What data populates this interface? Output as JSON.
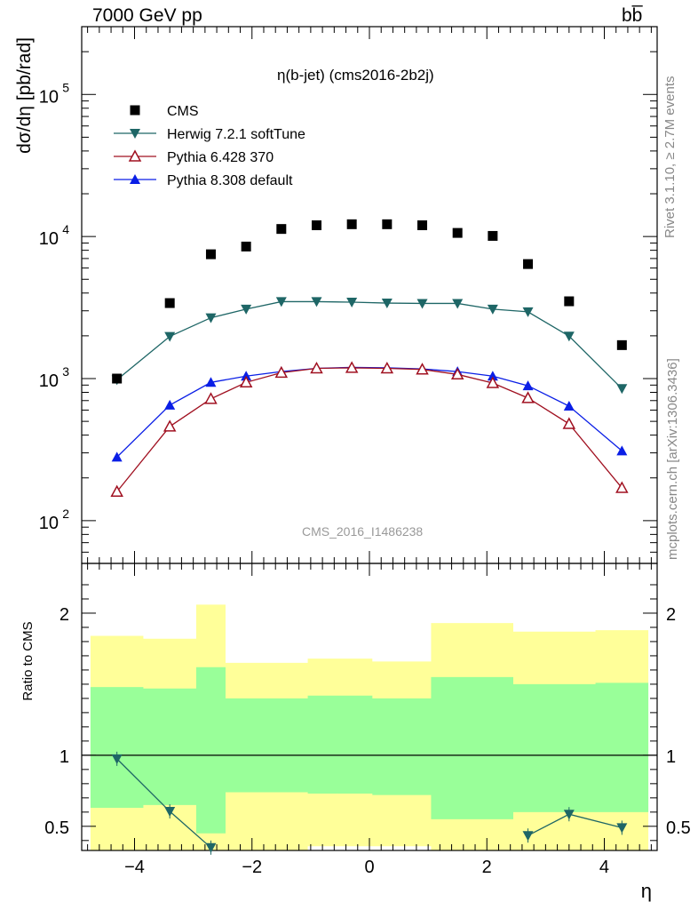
{
  "header": {
    "energy_label": "7000 GeV pp",
    "process_label": "bb̅"
  },
  "side_labels": {
    "rivet": "Rivet 3.1.10, ≥ 2.7M events",
    "mcplots": "mcplots.cern.ch [arXiv:1306.3436]"
  },
  "watermark": "CMS_2016_I1486238",
  "chart_data": {
    "type": "scatter",
    "title": "η(b-jet) (cms2016-2b2j)",
    "xlabel": "η",
    "ylabel": "dσ/dη [pb/rad]",
    "ratio_ylabel": "Ratio to CMS",
    "yscale": "log",
    "xlim": [
      -4.9,
      4.9
    ],
    "ylim": [
      50,
      300000
    ],
    "ratio_ylim": [
      0.33,
      2.35
    ],
    "x_ticks": [
      "−4",
      "−2",
      "0",
      "2",
      "4"
    ],
    "y_ticks": [
      "10^2",
      "10^3",
      "10^4",
      "10^5"
    ],
    "ratio_ticks": [
      "0.5",
      "1",
      "2"
    ],
    "legend_position": "top-left",
    "x": [
      -4.3,
      -3.4,
      -2.7,
      -2.1,
      -1.5,
      -0.9,
      -0.3,
      0.3,
      0.9,
      1.5,
      2.1,
      2.7,
      3.4,
      4.3
    ],
    "bin_edges": [
      -4.75,
      -3.85,
      -2.95,
      -2.45,
      -1.75,
      -1.05,
      -0.55,
      0.05,
      0.55,
      1.05,
      1.75,
      2.45,
      2.95,
      3.85,
      4.75
    ],
    "series": [
      {
        "name": "CMS",
        "marker": "square",
        "color": "#000000",
        "values": [
          1000,
          3400,
          7500,
          8500,
          11300,
          12000,
          12200,
          12200,
          12000,
          10600,
          10100,
          6400,
          3500,
          1720
        ]
      },
      {
        "name": "Herwig 7.2.1 softTune",
        "marker": "triangle-down",
        "color": "#1e6666",
        "values": [
          980,
          1980,
          2680,
          3080,
          3480,
          3480,
          3450,
          3400,
          3380,
          3380,
          3080,
          2950,
          1990,
          850
        ]
      },
      {
        "name": "Pythia 6.428 370",
        "marker": "triangle-up-open",
        "color": "#a01020",
        "values": [
          160,
          460,
          720,
          940,
          1100,
          1180,
          1190,
          1180,
          1160,
          1070,
          930,
          730,
          480,
          170
        ]
      },
      {
        "name": "Pythia 8.308 default",
        "marker": "triangle-up",
        "color": "#0a1ee6",
        "values": [
          280,
          650,
          940,
          1040,
          1120,
          1180,
          1200,
          1190,
          1170,
          1120,
          1040,
          890,
          640,
          310
        ]
      }
    ],
    "ratio": {
      "reference": 1,
      "band_outer": {
        "color": "#ffff99",
        "upper": [
          1.84,
          1.82,
          2.06,
          1.65,
          1.65,
          1.68,
          1.68,
          1.66,
          1.66,
          1.93,
          1.93,
          1.87,
          1.87,
          1.88
        ],
        "lower": [
          0.33,
          0.33,
          0.33,
          0.33,
          0.33,
          0.36,
          0.36,
          0.36,
          0.36,
          0.33,
          0.33,
          0.33,
          0.33,
          0.33
        ]
      },
      "band_inner": {
        "color": "#99ff99",
        "upper": [
          1.48,
          1.47,
          1.62,
          1.4,
          1.4,
          1.42,
          1.42,
          1.4,
          1.4,
          1.55,
          1.55,
          1.5,
          1.5,
          1.51
        ],
        "lower": [
          0.63,
          0.65,
          0.45,
          0.74,
          0.74,
          0.73,
          0.73,
          0.72,
          0.72,
          0.55,
          0.55,
          0.6,
          0.6,
          0.6
        ]
      },
      "herwig_ratio": [
        0.975,
        0.605,
        0.35,
        null,
        null,
        null,
        null,
        null,
        null,
        null,
        null,
        0.435,
        0.585,
        0.49
      ]
    }
  }
}
